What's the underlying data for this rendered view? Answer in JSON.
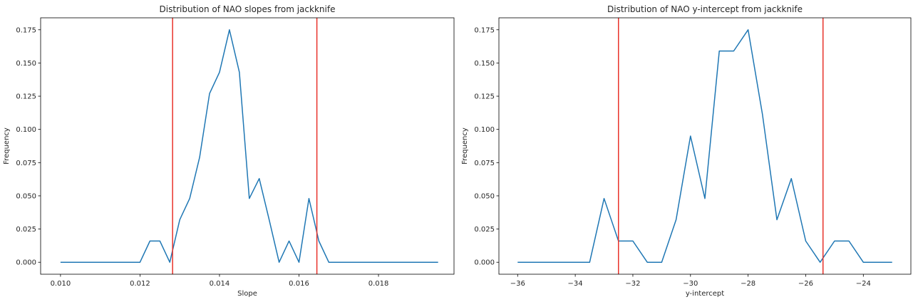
{
  "chart_data": [
    {
      "type": "line",
      "title": "Distribution of NAO slopes from jackknife",
      "xlabel": "Slope",
      "ylabel": "Frequency",
      "xlim": [
        0.0095,
        0.0199
      ],
      "ylim": [
        -0.009,
        0.184
      ],
      "xticks": [
        0.01,
        0.012,
        0.014,
        0.016,
        0.018
      ],
      "xtick_labels": [
        "0.010",
        "0.012",
        "0.014",
        "0.016",
        "0.018"
      ],
      "yticks": [
        0.0,
        0.025,
        0.05,
        0.075,
        0.1,
        0.125,
        0.15,
        0.175
      ],
      "ytick_labels": [
        "0.000",
        "0.025",
        "0.050",
        "0.075",
        "0.100",
        "0.125",
        "0.150",
        "0.175"
      ],
      "grid": false,
      "series": [
        {
          "color": "#1f77b4",
          "x": [
            0.01,
            0.012,
            0.01225,
            0.0125,
            0.01275,
            0.013,
            0.01325,
            0.0135,
            0.01375,
            0.014,
            0.01425,
            0.0145,
            0.01475,
            0.015,
            0.01525,
            0.0155,
            0.01575,
            0.016,
            0.01625,
            0.0165,
            0.01675,
            0.0195
          ],
          "y": [
            0.0,
            0.0,
            0.016,
            0.016,
            0.0,
            0.032,
            0.048,
            0.079,
            0.127,
            0.143,
            0.175,
            0.143,
            0.048,
            0.063,
            0.032,
            0.0,
            0.016,
            0.0,
            0.048,
            0.016,
            0.0,
            0.0
          ]
        }
      ],
      "vlines": [
        {
          "x": 0.01282,
          "color": "#e8322a"
        },
        {
          "x": 0.01645,
          "color": "#e8322a"
        }
      ]
    },
    {
      "type": "line",
      "title": "Distribution of NAO y-intercept from jackknife",
      "xlabel": "y-intercept",
      "ylabel": "Frequency",
      "xlim": [
        -36.65,
        -22.35
      ],
      "ylim": [
        -0.009,
        0.184
      ],
      "xticks": [
        -36,
        -34,
        -32,
        -30,
        -28,
        -26,
        -24
      ],
      "xtick_labels": [
        "−36",
        "−34",
        "−32",
        "−30",
        "−28",
        "−26",
        "−24"
      ],
      "yticks": [
        0.0,
        0.025,
        0.05,
        0.075,
        0.1,
        0.125,
        0.15,
        0.175
      ],
      "ytick_labels": [
        "0.000",
        "0.025",
        "0.050",
        "0.075",
        "0.100",
        "0.125",
        "0.150",
        "0.175"
      ],
      "grid": false,
      "series": [
        {
          "color": "#1f77b4",
          "x": [
            -36.0,
            -33.5,
            -33.0,
            -32.5,
            -32.0,
            -31.5,
            -31.0,
            -30.5,
            -30.0,
            -29.5,
            -29.0,
            -28.5,
            -28.0,
            -27.5,
            -27.0,
            -26.5,
            -26.0,
            -25.5,
            -25.0,
            -24.5,
            -24.0,
            -23.0
          ],
          "y": [
            0.0,
            0.0,
            0.048,
            0.016,
            0.016,
            0.0,
            0.0,
            0.032,
            0.095,
            0.048,
            0.159,
            0.159,
            0.175,
            0.111,
            0.032,
            0.063,
            0.016,
            0.0,
            0.016,
            0.016,
            0.0,
            0.0
          ]
        }
      ],
      "vlines": [
        {
          "x": -32.5,
          "color": "#e8322a"
        },
        {
          "x": -25.4,
          "color": "#e8322a"
        }
      ]
    }
  ]
}
